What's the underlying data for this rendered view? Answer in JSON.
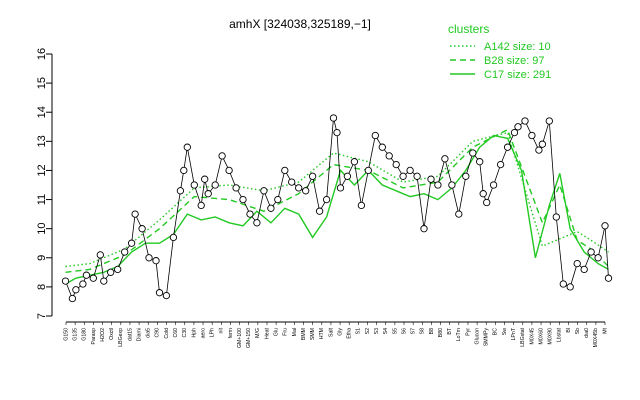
{
  "chart_data": {
    "type": "line",
    "title": "amhX [324038,325189,−1]",
    "xlabel": "",
    "ylabel": "",
    "ylim": [
      7,
      16
    ],
    "yticks": [
      7,
      8,
      9,
      10,
      11,
      12,
      13,
      14,
      15,
      16
    ],
    "grid": false,
    "legend_placement": "top-right",
    "legend": {
      "title": "clusters",
      "entries": [
        {
          "label": "A142 size: 10",
          "style": "dotted"
        },
        {
          "label": "B28 size: 97",
          "style": "dashed"
        },
        {
          "label": "C17 size: 291",
          "style": "solid"
        }
      ]
    },
    "colors": {
      "series": "#22c922",
      "gene": "#000000",
      "legend_text": "#22c922"
    },
    "x_tick_labels": [
      "G150",
      "G135",
      "G180",
      "Parasp",
      "H2O2",
      "Oxctl",
      "LBGexp",
      "dat15",
      "Diami",
      "dia5",
      "C90",
      "Cold",
      "C60",
      "C30",
      "Hph",
      "aero",
      "LPh",
      "nit",
      "ferm",
      "GM+100",
      "GM+150",
      "M/G",
      "Heat",
      "Glu",
      "Fru",
      "Mal",
      "BMM",
      "SMM",
      "HTM",
      "Salt",
      "Gly",
      "Etha",
      "S1",
      "S2",
      "S3",
      "S4",
      "S5",
      "S6",
      "S7",
      "S8",
      "B8",
      "B80",
      "BT",
      "LoTm",
      "Pyr",
      "Glucon",
      "SMMPy",
      "BC",
      "Sw",
      "LPnT",
      "LBGstat",
      "M0X45",
      "M0X60",
      "M0X90",
      "Lbstat",
      "Bl",
      "Sb",
      "dia0",
      "M0X45b",
      "Mt"
    ],
    "series": [
      {
        "name": "A142 size: 10",
        "style": "dotted",
        "x": [
          1,
          8,
          18,
          28,
          38,
          48,
          58,
          68,
          78,
          88,
          98,
          108,
          118,
          128,
          138,
          148,
          152,
          157
        ],
        "values": [
          8.7,
          8.8,
          9.3,
          10.3,
          11.4,
          11.5,
          11.3,
          11.6,
          12.6,
          12.3,
          11.6,
          11.8,
          13.0,
          13.3,
          9.4,
          9.9,
          9.6,
          9.2
        ]
      },
      {
        "name": "B28 size: 97",
        "style": "dashed",
        "x": [
          1,
          8,
          18,
          28,
          38,
          48,
          58,
          68,
          78,
          88,
          98,
          108,
          118,
          128,
          138,
          143,
          148,
          152,
          157
        ],
        "values": [
          8.5,
          8.6,
          9.1,
          10.0,
          11.1,
          11.0,
          10.6,
          11.2,
          12.2,
          12.0,
          11.4,
          11.6,
          12.8,
          13.4,
          10.2,
          11.5,
          9.6,
          9.3,
          8.7
        ]
      },
      {
        "name": "C17 size: 291",
        "style": "solid",
        "x": [
          1,
          4,
          8,
          12,
          16,
          20,
          24,
          28,
          32,
          36,
          40,
          44,
          48,
          52,
          56,
          60,
          64,
          68,
          72,
          76,
          80,
          84,
          88,
          92,
          96,
          100,
          104,
          108,
          112,
          116,
          120,
          124,
          128,
          132,
          136,
          140,
          143,
          146,
          150,
          154,
          157
        ],
        "values": [
          8.1,
          8.3,
          8.4,
          8.5,
          8.7,
          9.2,
          9.5,
          9.5,
          9.8,
          10.5,
          10.3,
          10.4,
          10.2,
          10.1,
          10.6,
          10.2,
          10.7,
          10.5,
          9.7,
          10.4,
          12.0,
          11.5,
          12.0,
          11.5,
          11.3,
          11.1,
          11.2,
          11.0,
          11.4,
          12.0,
          12.8,
          13.2,
          13.1,
          12.0,
          9.0,
          10.8,
          11.9,
          10.0,
          9.2,
          8.8,
          8.6
        ]
      },
      {
        "name": "",
        "style": "points",
        "x": [
          1,
          3,
          4,
          6,
          7,
          9,
          11,
          12,
          14,
          16,
          18,
          20,
          21,
          23,
          25,
          27,
          28,
          30,
          32,
          34,
          35,
          36,
          38,
          40,
          41,
          42,
          44,
          46,
          48,
          50,
          52,
          54,
          56,
          58,
          60,
          62,
          64,
          66,
          68,
          70,
          72,
          74,
          76,
          78,
          79,
          80,
          82,
          84,
          86,
          88,
          90,
          92,
          94,
          96,
          98,
          100,
          102,
          104,
          106,
          108,
          110,
          112,
          114,
          116,
          118,
          120,
          121,
          122,
          124,
          126,
          128,
          130,
          131,
          133,
          135,
          137,
          138,
          140,
          142,
          144,
          146,
          148,
          150,
          152,
          154,
          156,
          157
        ],
        "values": [
          8.2,
          7.6,
          7.9,
          8.1,
          8.4,
          8.3,
          9.1,
          8.2,
          8.5,
          8.6,
          9.2,
          9.5,
          10.5,
          10.0,
          9.0,
          8.9,
          7.8,
          7.7,
          9.7,
          11.3,
          12.0,
          12.8,
          11.5,
          10.8,
          11.7,
          11.2,
          11.5,
          12.5,
          12.0,
          11.4,
          11.0,
          10.5,
          10.2,
          11.3,
          10.7,
          11.0,
          12.0,
          11.6,
          11.4,
          11.3,
          11.8,
          10.6,
          11.0,
          13.8,
          13.3,
          11.4,
          11.8,
          12.3,
          10.8,
          12.0,
          13.2,
          12.8,
          12.5,
          12.2,
          11.8,
          12.0,
          11.8,
          10.0,
          11.7,
          11.5,
          12.4,
          11.5,
          10.5,
          11.8,
          12.6,
          12.3,
          11.2,
          10.9,
          11.5,
          12.2,
          12.8,
          13.3,
          13.5,
          13.7,
          13.2,
          12.7,
          12.9,
          13.7,
          10.4,
          8.1,
          8.0,
          8.8,
          8.6,
          9.2,
          9.0,
          10.1,
          8.3
        ]
      }
    ]
  }
}
